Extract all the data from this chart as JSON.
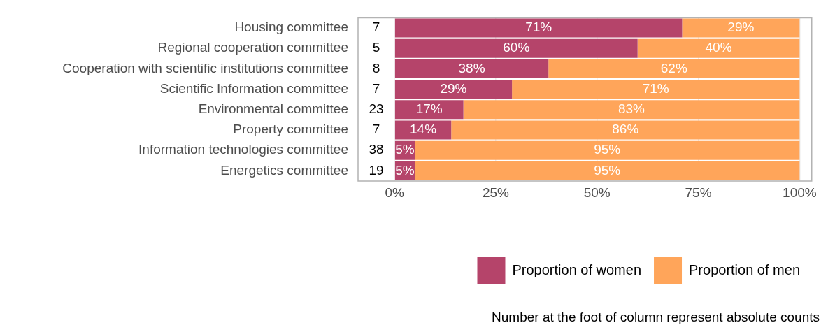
{
  "chart_data": {
    "type": "bar",
    "orientation": "horizontal",
    "stacked": true,
    "categories": [
      "Housing committee",
      "Regional cooperation committee",
      "Cooperation with scientific institutions committee",
      "Scientific Information committee",
      "Environmental committee",
      "Property committee",
      "Information technologies committee",
      "Energetics committee"
    ],
    "series": [
      {
        "name": "Proportion of women",
        "color": "#b5446a",
        "values": [
          71,
          60,
          38,
          29,
          17,
          14,
          5,
          5
        ],
        "value_labels": [
          "71%",
          "60%",
          "38%",
          "29%",
          "17%",
          "14%",
          "5%",
          "5%"
        ]
      },
      {
        "name": "Proportion of men",
        "color": "#ffa55a",
        "values": [
          29,
          40,
          62,
          71,
          83,
          86,
          95,
          95
        ],
        "value_labels": [
          "29%",
          "40%",
          "62%",
          "71%",
          "83%",
          "86%",
          "95%",
          "95%"
        ]
      }
    ],
    "xlim": [
      -9,
      103
    ],
    "xticks": [
      {
        "value": 0,
        "label": "0%"
      },
      {
        "value": 25,
        "label": "25%"
      },
      {
        "value": 50,
        "label": "50%"
      },
      {
        "value": 75,
        "label": "75%"
      },
      {
        "value": 100,
        "label": "100%"
      }
    ],
    "grid": "x",
    "legend": "bottom",
    "annotations": [
      "7",
      "5",
      "8",
      "7",
      "23",
      "7",
      "38",
      "19",
      "Number at the foot of column represent absolute counts"
    ]
  }
}
